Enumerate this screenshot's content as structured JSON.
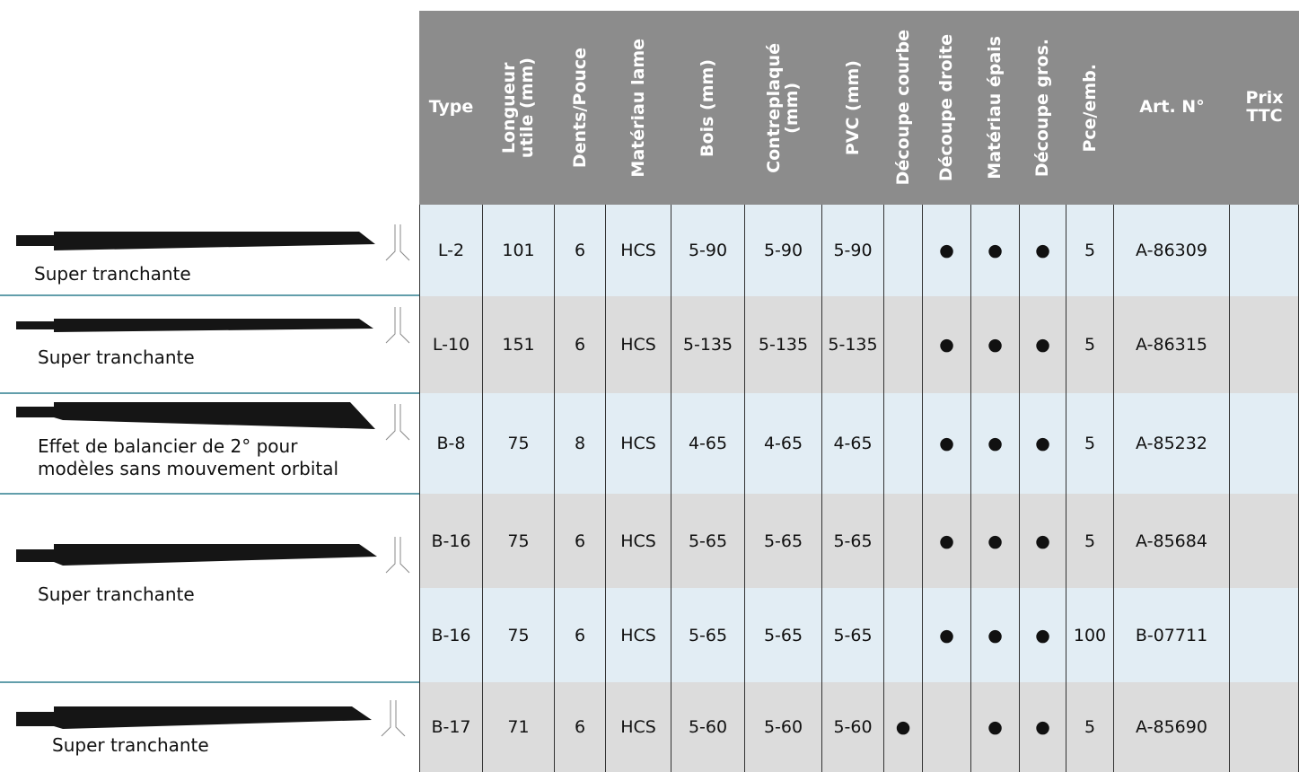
{
  "header": {
    "columns": [
      [
        "Type"
      ],
      [
        "Longueur",
        "utile (mm)"
      ],
      [
        "Dents/Pouce"
      ],
      [
        "Matériau lame"
      ],
      [
        "Bois (mm)"
      ],
      [
        "Contreplaqué",
        "(mm)"
      ],
      [
        "PVC (mm)"
      ],
      [
        "Découpe courbe"
      ],
      [
        "Découpe droite"
      ],
      [
        "Matériau épais"
      ],
      [
        "Découpe gros."
      ],
      [
        "Pce/emb."
      ],
      [
        "Art. N°"
      ],
      [
        "Prix",
        "TTC"
      ]
    ]
  },
  "blades": [
    {
      "label": [
        "Super tranchante"
      ]
    },
    {
      "label": [
        "Super tranchante"
      ]
    },
    {
      "label": [
        "Effet de balancier de 2° pour",
        "modèles sans mouvement orbital"
      ]
    },
    {
      "label": [
        "Super tranchante"
      ]
    },
    {
      "label": [
        "Super tranchante"
      ]
    }
  ],
  "table": {
    "rows": [
      [
        "L-2",
        "101",
        "6",
        "HCS",
        "5-90",
        "5-90",
        "5-90",
        null,
        "●",
        "●",
        "●",
        "5",
        "A-86309",
        null
      ],
      [
        "L-10",
        "151",
        "6",
        "HCS",
        "5-135",
        "5-135",
        "5-135",
        null,
        "●",
        "●",
        "●",
        "5",
        "A-86315",
        null
      ],
      [
        "B-8",
        "75",
        "8",
        "HCS",
        "4-65",
        "4-65",
        "4-65",
        null,
        "●",
        "●",
        "●",
        "5",
        "A-85232",
        null
      ],
      [
        "B-16",
        "75",
        "6",
        "HCS",
        "5-65",
        "5-65",
        "5-65",
        null,
        "●",
        "●",
        "●",
        "5",
        "A-85684",
        null
      ],
      [
        "B-16",
        "75",
        "6",
        "HCS",
        "5-65",
        "5-65",
        "5-65",
        null,
        "●",
        "●",
        "●",
        "100",
        "B-07711",
        null
      ],
      [
        "B-17",
        "71",
        "6",
        "HCS",
        "5-60",
        "5-60",
        "5-60",
        "●",
        null,
        "●",
        "●",
        "5",
        "A-85690",
        null
      ]
    ]
  }
}
